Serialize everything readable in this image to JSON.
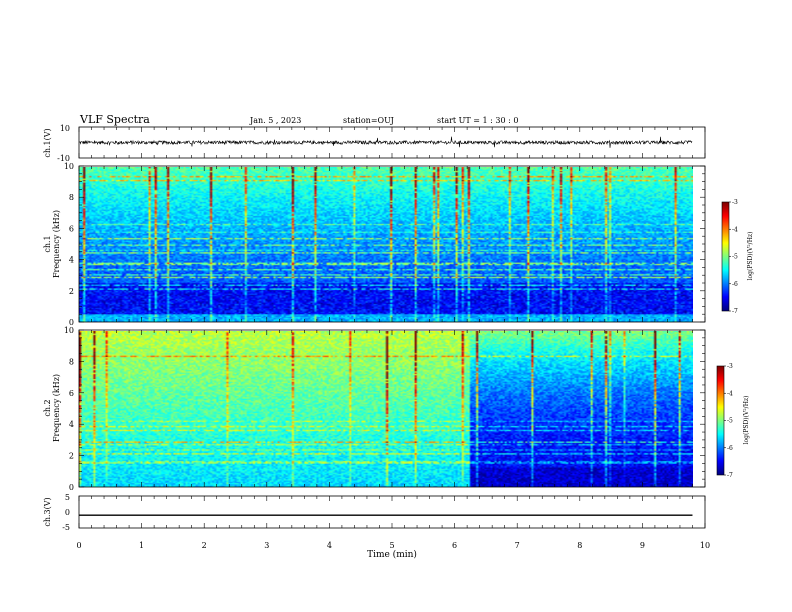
{
  "header": {
    "title": "VLF Spectra",
    "date": "Jan. 5 , 2023",
    "station": "station=OUJ",
    "start": "start UT =  1 : 30 : 0"
  },
  "colorbar": {
    "label": "log(PSD)(V²/Hz)",
    "ticks": [
      "-3",
      "-4",
      "-5",
      "-6",
      "-7"
    ],
    "range": [
      -7,
      -3
    ]
  },
  "chart_data": [
    {
      "type": "line",
      "panel": "ch1-waveform",
      "ylabel": "ch.1(V)",
      "ylim": [
        -10,
        10
      ],
      "yticks": [
        "10",
        "-10"
      ],
      "baseline": 0,
      "noise_amplitude": 2
    },
    {
      "type": "heatmap",
      "panel": "ch1-spectrogram",
      "ylabel": "ch.1\nFrequency (kHz)",
      "ylim": [
        0,
        10
      ],
      "yticks": [
        "0",
        "2",
        "4",
        "6",
        "8",
        "10"
      ],
      "xlim": [
        0,
        9.8
      ],
      "color_scale": "log(PSD)"
    },
    {
      "type": "heatmap",
      "panel": "ch2-spectrogram",
      "ylabel": "ch.2\nFrequency (kHz)",
      "ylim": [
        0,
        10
      ],
      "yticks": [
        "0",
        "2",
        "4",
        "6",
        "8",
        "10"
      ],
      "xlim": [
        0,
        9.8
      ],
      "color_scale": "log(PSD)",
      "transition_min": 6.2
    },
    {
      "type": "line",
      "panel": "ch3-waveform",
      "ylabel": "ch.3(V)",
      "ylim": [
        -5,
        5
      ],
      "yticks": [
        "5",
        "0",
        "-5"
      ],
      "x": [
        0,
        9.8
      ],
      "y": [
        -1,
        -1
      ]
    }
  ],
  "xaxis": {
    "label": "Time (min)",
    "ticks": [
      "0",
      "1",
      "2",
      "3",
      "4",
      "5",
      "6",
      "7",
      "8",
      "9",
      "10"
    ],
    "range": [
      0,
      10
    ]
  }
}
